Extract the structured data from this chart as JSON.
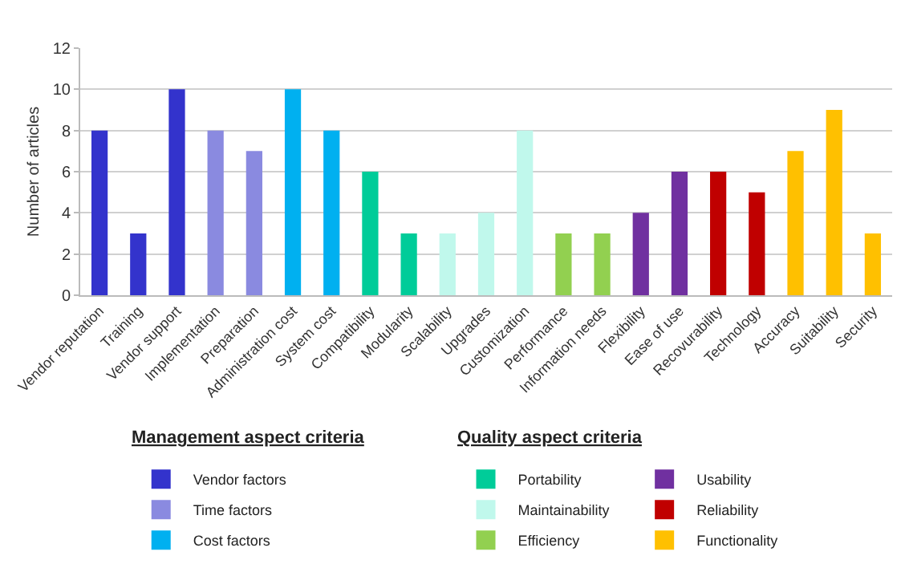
{
  "chart_data": {
    "type": "bar",
    "ylabel": "Number of articles",
    "categories": [
      "Vendor reputation",
      "Training",
      "Vendor support",
      "Implementation",
      "Preparation",
      "Administration cost",
      "System cost",
      "Compatibility",
      "Modularity",
      "Scalability",
      "Upgrades",
      "Customization",
      "Performance",
      "Information needs",
      "Flexibility",
      "Ease of use",
      "Recovurability",
      "Technology",
      "Accuracy",
      "Suitability",
      "Security"
    ],
    "series": [
      {
        "name": "Vendor factors",
        "color": "#3333cc",
        "values": [
          8,
          3,
          10,
          null,
          null,
          null,
          null,
          null,
          null,
          null,
          null,
          null,
          null,
          null,
          null,
          null,
          null,
          null,
          null,
          null,
          null
        ]
      },
      {
        "name": "Time factors",
        "color": "#8a8ae0",
        "values": [
          null,
          null,
          null,
          8,
          7,
          null,
          null,
          null,
          null,
          null,
          null,
          null,
          null,
          null,
          null,
          null,
          null,
          null,
          null,
          null,
          null
        ]
      },
      {
        "name": "Cost factors",
        "color": "#00b0f0",
        "values": [
          null,
          null,
          null,
          null,
          null,
          10,
          8,
          null,
          null,
          null,
          null,
          null,
          null,
          null,
          null,
          null,
          null,
          null,
          null,
          null,
          null
        ]
      },
      {
        "name": "Portability",
        "color": "#00cc99",
        "values": [
          null,
          null,
          null,
          null,
          null,
          null,
          null,
          6,
          3,
          null,
          null,
          null,
          null,
          null,
          null,
          null,
          null,
          null,
          null,
          null,
          null
        ]
      },
      {
        "name": "Maintainability",
        "color": "#c0f8ec",
        "values": [
          null,
          null,
          null,
          null,
          null,
          null,
          null,
          null,
          null,
          3,
          4,
          8,
          null,
          null,
          null,
          null,
          null,
          null,
          null,
          null,
          null
        ]
      },
      {
        "name": "Efficiency",
        "color": "#92d050",
        "values": [
          null,
          null,
          null,
          null,
          null,
          null,
          null,
          null,
          null,
          null,
          null,
          null,
          3,
          3,
          null,
          null,
          null,
          null,
          null,
          null,
          null
        ]
      },
      {
        "name": "Usability",
        "color": "#7030a0",
        "values": [
          null,
          null,
          null,
          null,
          null,
          null,
          null,
          null,
          null,
          null,
          null,
          null,
          null,
          null,
          4,
          6,
          null,
          null,
          null,
          null,
          null
        ]
      },
      {
        "name": "Reliability",
        "color": "#c00000",
        "values": [
          null,
          null,
          null,
          null,
          null,
          null,
          null,
          null,
          null,
          null,
          null,
          null,
          null,
          null,
          null,
          null,
          6,
          5,
          null,
          null,
          null
        ]
      },
      {
        "name": "Functionality",
        "color": "#ffc000",
        "values": [
          null,
          null,
          null,
          null,
          null,
          null,
          null,
          null,
          null,
          null,
          null,
          null,
          null,
          null,
          null,
          null,
          null,
          null,
          7,
          9,
          3
        ]
      }
    ],
    "ylim": [
      0,
      12
    ],
    "yticks": [
      0,
      2,
      4,
      6,
      8,
      10,
      12
    ],
    "grid": "y",
    "legend": "bottom",
    "annotations": [
      "Management aspect criteria",
      "Quality aspect criteria"
    ]
  }
}
